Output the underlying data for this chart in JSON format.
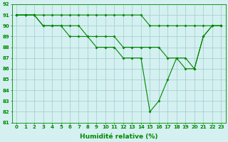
{
  "x": [
    0,
    1,
    2,
    3,
    4,
    5,
    6,
    7,
    8,
    9,
    10,
    11,
    12,
    13,
    14,
    15,
    16,
    17,
    18,
    19,
    20,
    21,
    22,
    23
  ],
  "y_top": [
    91,
    91,
    91,
    91,
    91,
    91,
    91,
    91,
    91,
    91,
    91,
    91,
    91,
    91,
    91,
    90,
    90,
    90,
    90,
    90,
    90,
    90,
    90,
    90
  ],
  "y_mid": [
    91,
    91,
    91,
    90,
    90,
    90,
    90,
    90,
    89,
    89,
    89,
    89,
    88,
    88,
    88,
    88,
    88,
    87,
    87,
    87,
    86,
    89,
    90,
    90
  ],
  "y_bot": [
    91,
    91,
    91,
    90,
    90,
    90,
    89,
    89,
    89,
    88,
    88,
    88,
    87,
    87,
    87,
    82,
    83,
    85,
    87,
    86,
    86,
    89,
    90,
    90
  ],
  "ylim_min": 81,
  "ylim_max": 92,
  "xlim_min": -0.5,
  "xlim_max": 23.5,
  "yticks": [
    81,
    82,
    83,
    84,
    85,
    86,
    87,
    88,
    89,
    90,
    91,
    92
  ],
  "xticks": [
    0,
    1,
    2,
    3,
    4,
    5,
    6,
    7,
    8,
    9,
    10,
    11,
    12,
    13,
    14,
    15,
    16,
    17,
    18,
    19,
    20,
    21,
    22,
    23
  ],
  "xlabel": "Humidité relative (%)",
  "line_color": "#008800",
  "bg_color": "#d4f0f0",
  "grid_color": "#a0cccc",
  "markersize": 2.0,
  "linewidth": 0.8,
  "tick_fontsize": 5.0,
  "xlabel_fontsize": 6.5
}
